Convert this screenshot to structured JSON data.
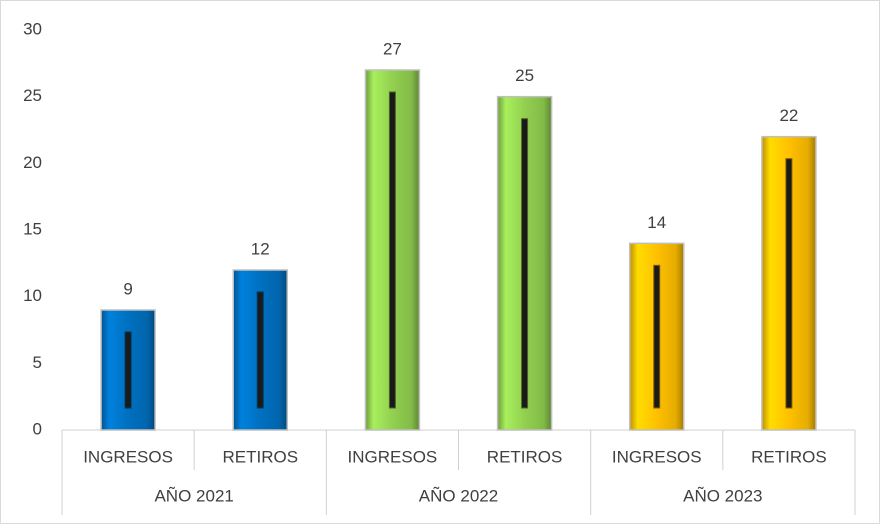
{
  "chart_data": {
    "type": "bar",
    "categories": [
      "INGRESOS",
      "RETIROS",
      "INGRESOS",
      "RETIROS",
      "INGRESOS",
      "RETIROS"
    ],
    "groups": [
      "AÑO 2021",
      "AÑO 2022",
      "AÑO 2023"
    ],
    "values": [
      9,
      12,
      27,
      25,
      14,
      22
    ],
    "colors": [
      "#0070c0",
      "#0070c0",
      "#92d050",
      "#92d050",
      "#ffc000",
      "#ffc000"
    ],
    "ylim": [
      0,
      30
    ],
    "yticks": [
      0,
      5,
      10,
      15,
      20,
      25,
      30
    ],
    "grid": false,
    "data_labels": true
  }
}
